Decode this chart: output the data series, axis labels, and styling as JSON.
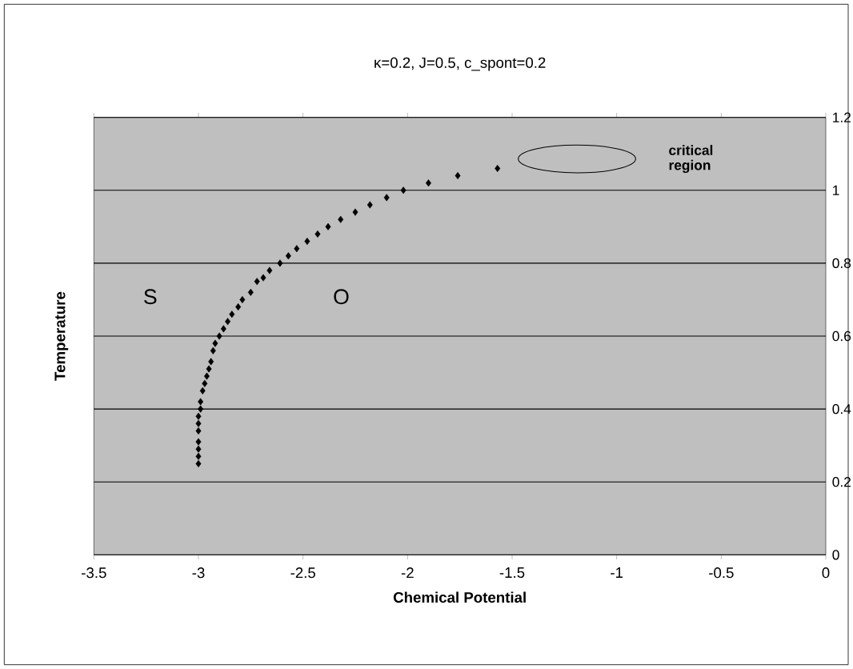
{
  "chart_data": {
    "type": "scatter",
    "title": "κ=0.2, J=0.5, c_spont=0.2",
    "xlabel": "Chemical Potential",
    "ylabel": "Temperature",
    "xlim": [
      -3.5,
      0
    ],
    "xticks": [
      -3.5,
      -3,
      -2.5,
      -2,
      -1.5,
      -1,
      -0.5,
      0
    ],
    "ylim": [
      0,
      1.2
    ],
    "yticks": [
      0,
      0.2,
      0.4,
      0.6,
      0.8,
      1,
      1.2
    ],
    "grid": "y",
    "marker": "diamond",
    "annotations": [
      "S",
      "O",
      "critical region"
    ],
    "series": [
      {
        "color": "#000000",
        "x": [
          -1.57,
          -1.76,
          -1.9,
          -2.02,
          -2.1,
          -2.18,
          -2.25,
          -2.32,
          -2.38,
          -2.43,
          -2.48,
          -2.53,
          -2.57,
          -2.61,
          -2.66,
          -2.69,
          -2.72,
          -2.75,
          -2.79,
          -2.81,
          -2.84,
          -2.86,
          -2.88,
          -2.9,
          -2.92,
          -2.93,
          -2.94,
          -2.95,
          -2.96,
          -2.97,
          -2.98,
          -2.99,
          -2.99,
          -3.0,
          -3.0,
          -3.0,
          -3.0,
          -3.0,
          -3.0,
          -3.0
        ],
        "values": [
          1.06,
          1.04,
          1.02,
          1.0,
          0.98,
          0.96,
          0.94,
          0.92,
          0.9,
          0.88,
          0.86,
          0.84,
          0.82,
          0.8,
          0.78,
          0.76,
          0.75,
          0.72,
          0.7,
          0.68,
          0.66,
          0.64,
          0.62,
          0.6,
          0.58,
          0.56,
          0.53,
          0.51,
          0.49,
          0.47,
          0.45,
          0.42,
          0.4,
          0.38,
          0.36,
          0.34,
          0.31,
          0.29,
          0.27,
          0.25
        ]
      }
    ]
  }
}
